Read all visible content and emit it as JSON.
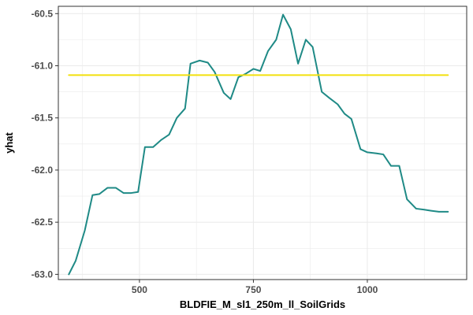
{
  "chart_data": {
    "type": "line",
    "xlabel": "BLDFIE_M_sl1_250m_ll_SoilGrids",
    "ylabel": "yhat",
    "xlim": [
      322,
      1218
    ],
    "ylim": [
      -63.05,
      -60.43
    ],
    "x_ticks": [
      500,
      750,
      1000
    ],
    "x_tick_labels": [
      "500",
      "750",
      "1000"
    ],
    "y_ticks": [
      -63.0,
      -62.5,
      -62.0,
      -61.5,
      -61.0,
      -60.5
    ],
    "y_tick_labels": [
      "-63.0",
      "-62.5",
      "-62.0",
      "-61.5",
      "-61.0",
      "-60.5"
    ],
    "grid": true,
    "background": "#ffffff",
    "grid_color": "#ebebeb",
    "series": [
      {
        "color": "#1f8a86",
        "x": [
          345,
          360,
          380,
          397,
          412,
          430,
          448,
          465,
          482,
          497,
          512,
          530,
          548,
          565,
          582,
          600,
          612,
          632,
          650,
          665,
          685,
          700,
          717,
          732,
          750,
          765,
          782,
          800,
          815,
          832,
          848,
          865,
          880,
          900,
          917,
          935,
          950,
          965,
          985,
          1000,
          1020,
          1035,
          1052,
          1070,
          1087,
          1107,
          1125,
          1140,
          1157,
          1177
        ],
        "y": [
          -63.0,
          -62.87,
          -62.58,
          -62.24,
          -62.23,
          -62.17,
          -62.17,
          -62.22,
          -62.22,
          -62.21,
          -61.78,
          -61.78,
          -61.71,
          -61.66,
          -61.5,
          -61.41,
          -60.98,
          -60.95,
          -60.97,
          -61.06,
          -61.26,
          -61.32,
          -61.11,
          -61.08,
          -61.03,
          -61.05,
          -60.86,
          -60.75,
          -60.51,
          -60.65,
          -60.98,
          -60.75,
          -60.82,
          -61.25,
          -61.31,
          -61.37,
          -61.46,
          -61.51,
          -61.8,
          -61.83,
          -61.84,
          -61.85,
          -61.96,
          -61.96,
          -62.28,
          -62.37,
          -62.38,
          -62.39,
          -62.4,
          -62.4
        ]
      },
      {
        "color": "#f2e00d",
        "x": [
          345,
          1177
        ],
        "y": [
          -61.09,
          -61.09
        ]
      }
    ]
  }
}
